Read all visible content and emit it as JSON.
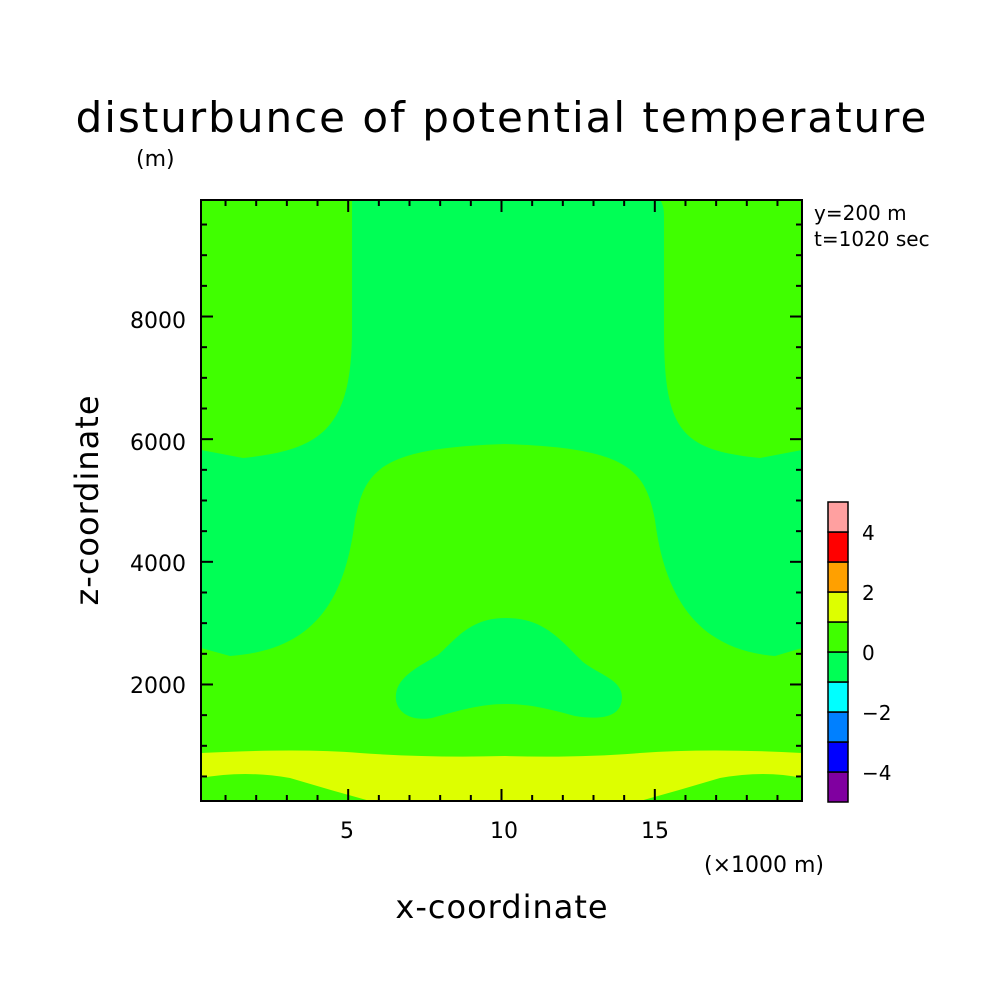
{
  "chart_data": {
    "type": "contour",
    "title": "disturbunce of potential temperature",
    "title_unit": "(m)",
    "xlabel": "x-coordinate",
    "ylabel": "z-coordinate",
    "x_unit_label": "(×1000 m)",
    "annotations": [
      "y=200 m",
      "t=1020 sec"
    ],
    "xlim": [
      0.2,
      19.8
    ],
    "ylim": [
      100,
      9900
    ],
    "x_major_ticks": [
      5,
      10,
      15
    ],
    "x_tick_labels": [
      "5",
      "10",
      "15"
    ],
    "y_major_ticks": [
      2000,
      4000,
      6000,
      8000
    ],
    "y_tick_labels": [
      "2000",
      "4000",
      "6000",
      "8000"
    ],
    "grid": false,
    "colorbar": {
      "levels": [
        -5,
        -4,
        -3,
        -2,
        -1,
        0,
        1,
        2,
        3,
        4,
        5
      ],
      "colors": [
        "#8000a0",
        "#0000ff",
        "#0080ff",
        "#00ffff",
        "#00ff55",
        "#40ff00",
        "#ddff00",
        "#ffa000",
        "#ff0000",
        "#ffa0a0"
      ],
      "tick_values": [
        -4,
        -2,
        0,
        2,
        4
      ],
      "tick_labels": [
        "−4",
        "−2",
        "0",
        "2",
        "4"
      ]
    },
    "regions": {
      "background": {
        "range": [
          0,
          1
        ],
        "color": "#40ff00"
      },
      "central_column": {
        "range": [
          -1,
          0
        ],
        "color": "#00ff55",
        "approx_extent": "x 5 to 15 above z≈6000; widening to full width between z≈2500 and z≈6000"
      },
      "central_bump": {
        "range": [
          0,
          1
        ],
        "color": "#40ff00",
        "approx_extent": "x≈6 to 14.5, z≈2400 to 6000"
      },
      "low_bubble": {
        "range": [
          -1,
          0
        ],
        "color": "#00ff55",
        "approx_extent": "x≈7.5 to 13.8, z≈1400 to 3100"
      },
      "near_surface_band": {
        "range": [
          1,
          2
        ],
        "color": "#ddff00",
        "approx_extent": "z≈100 to 850"
      }
    }
  }
}
